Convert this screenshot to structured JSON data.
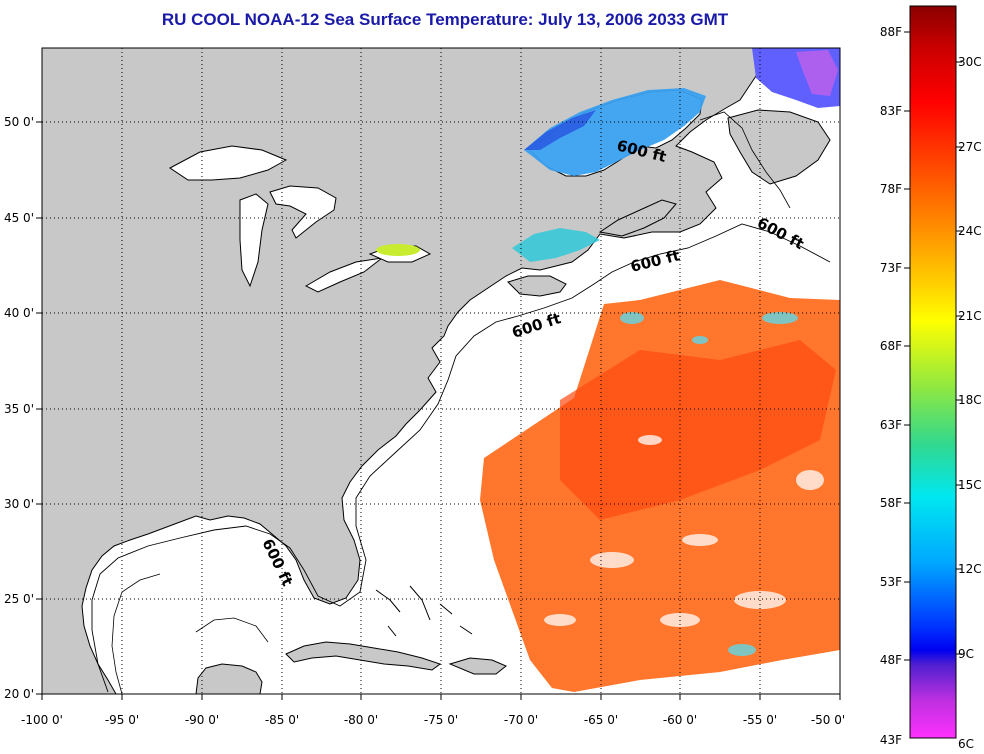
{
  "title": "RU COOL  NOAA-12  Sea Surface Temperature:  July 13, 2006 2033 GMT",
  "map": {
    "lon_labels": [
      "-100 0'",
      "-95 0'",
      "-90 0'",
      "-85 0'",
      "-80 0'",
      "-75 0'",
      "-70 0'",
      "-65 0'",
      "-60 0'",
      "-55 0'",
      "-50 0'"
    ],
    "lat_labels": [
      "50 0'",
      "45 0'",
      "40 0'",
      "35 0'",
      "30 0'",
      "25 0'",
      "20 0'"
    ],
    "lon_range": [
      -100,
      -50
    ],
    "lat_range": [
      20,
      52.5
    ],
    "depth_contour_label": "600 ft",
    "land_color": "#c8c8c8",
    "ocean_color": "#ffffff",
    "grid": "dotted"
  },
  "colorbar": {
    "fahrenheit_labels": [
      "88F",
      "83F",
      "78F",
      "73F",
      "68F",
      "63F",
      "58F",
      "53F",
      "48F",
      "43F"
    ],
    "celsius_labels": [
      "30C",
      "27C",
      "24C",
      "21C",
      "18C",
      "15C",
      "12C",
      "9C",
      "6C"
    ],
    "range_c": [
      6,
      31.2
    ]
  }
}
